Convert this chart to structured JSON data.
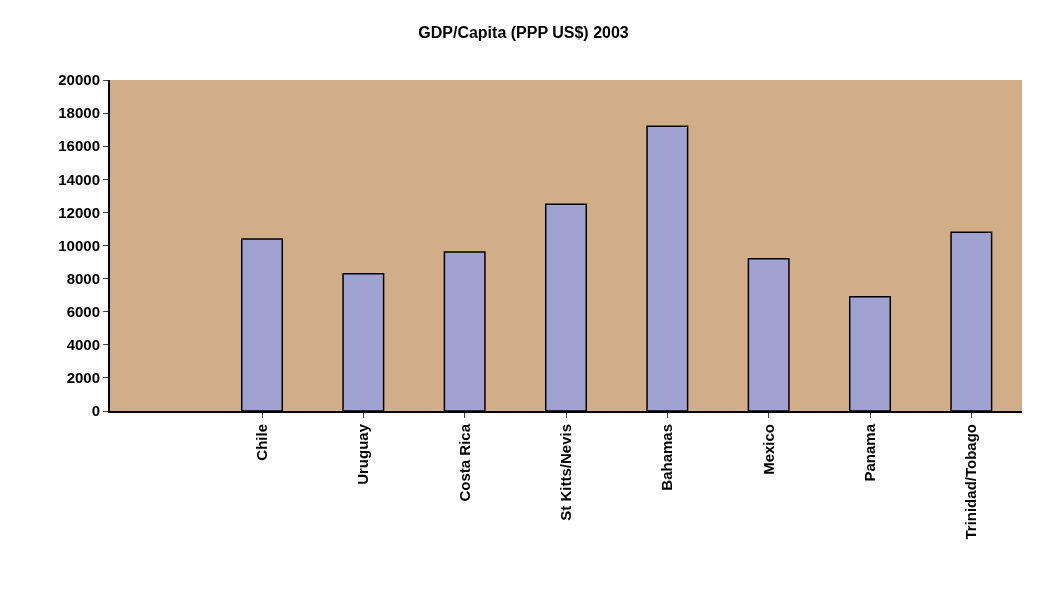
{
  "chart_data": {
    "type": "bar",
    "title": "GDP/Capita (PPP US$) 2003",
    "categories": [
      null,
      "Chile",
      "Uruguay",
      "Costa Rica",
      "St Kitts/Nevis",
      "Bahamas",
      "Mexico",
      "Panama",
      "Trinidad/Tobago"
    ],
    "values": [
      null,
      10400,
      8300,
      9600,
      12500,
      17200,
      9200,
      6900,
      10800
    ],
    "color": "#a0a2d2",
    "ylim": [
      0,
      20000
    ],
    "yticks": [
      0,
      2000,
      4000,
      6000,
      8000,
      10000,
      12000,
      14000,
      16000,
      18000,
      20000
    ],
    "grid": false
  }
}
